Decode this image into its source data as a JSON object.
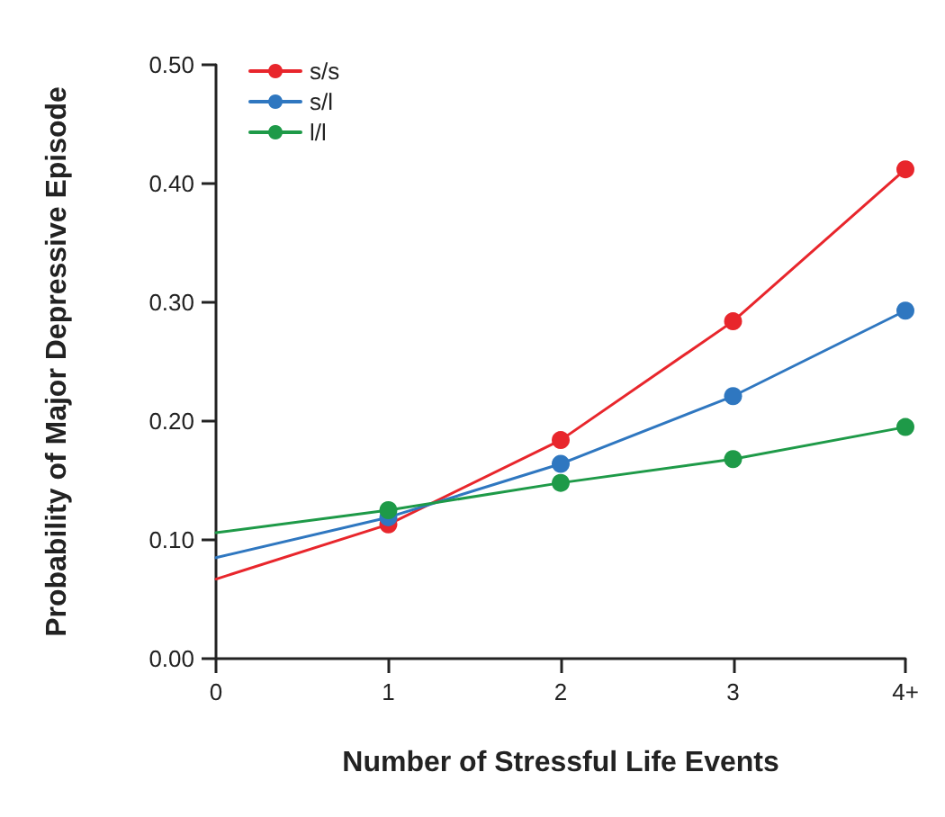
{
  "chart_data": {
    "type": "line",
    "xlabel": "Number of Stressful Life Events",
    "ylabel": "Probability of Major Depressive Episode",
    "x": [
      0,
      1,
      2,
      3,
      4
    ],
    "series": [
      {
        "name": "s/s",
        "color": "#e8262c",
        "values": [
          0.067,
          0.113,
          0.184,
          0.284,
          0.412
        ]
      },
      {
        "name": "s/l",
        "color": "#2f77c0",
        "values": [
          0.085,
          0.119,
          0.164,
          0.221,
          0.293
        ]
      },
      {
        "name": "l/l",
        "color": "#1e9a48",
        "values": [
          0.106,
          0.125,
          0.148,
          0.168,
          0.195
        ]
      }
    ],
    "xlim": [
      0,
      4
    ],
    "xticks": [
      0,
      1,
      2,
      3,
      {
        "value": 4,
        "label": "4+"
      }
    ],
    "ylim": [
      0,
      0.5
    ],
    "yticks": [
      {
        "value": 0,
        "label": "0.00"
      },
      {
        "value": 0.1,
        "label": "0.10"
      },
      {
        "value": 0.2,
        "label": "0.20"
      },
      {
        "value": 0.3,
        "label": "0.30"
      },
      {
        "value": 0.4,
        "label": "0.40"
      },
      {
        "value": 0.5,
        "label": "0.50"
      }
    ],
    "grid": false,
    "legend": "top left",
    "marker": "circle",
    "line_style": "solid"
  }
}
